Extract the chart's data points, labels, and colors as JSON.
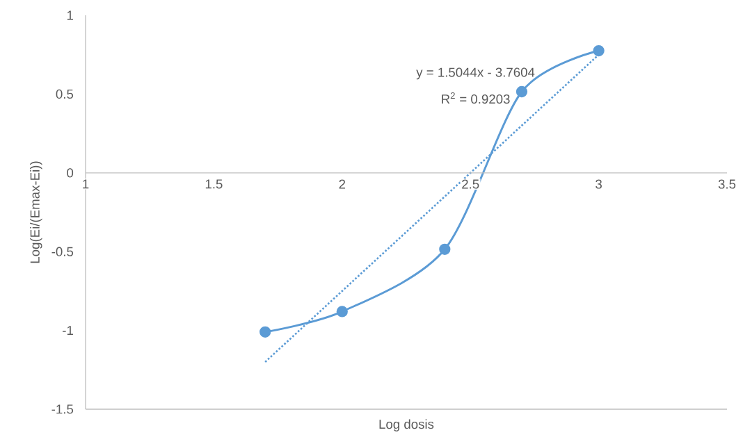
{
  "chart_data": {
    "type": "line",
    "xlabel": "Log dosis",
    "ylabel": "Log(Ei/(Emax-Ei))",
    "annotations": [
      "y = 1.5044x - 3.7604",
      "R$^{2}$ = 0.9203"
    ],
    "series": [
      {
        "color": "#5b9bd5",
        "marker": "circle",
        "line_style": "solid",
        "x": [
          1.7,
          2.0,
          2.4,
          2.7,
          3.0
        ],
        "values": [
          -1.01,
          -0.88,
          -0.485,
          0.515,
          0.775
        ]
      },
      {
        "type": "line",
        "color": "#5b9bd5",
        "marker": "none",
        "line_style": "dotted",
        "x": [
          1.7,
          3.0
        ],
        "values": [
          -1.2,
          0.75
        ]
      }
    ],
    "xlim": [
      1,
      3.5
    ],
    "xticks": [
      1,
      1.5,
      2,
      2.5,
      3,
      3.5
    ],
    "ylim": [
      -1.5,
      1
    ],
    "yticks": [
      -1.5,
      -1,
      -0.5,
      0,
      0.5,
      1
    ]
  }
}
